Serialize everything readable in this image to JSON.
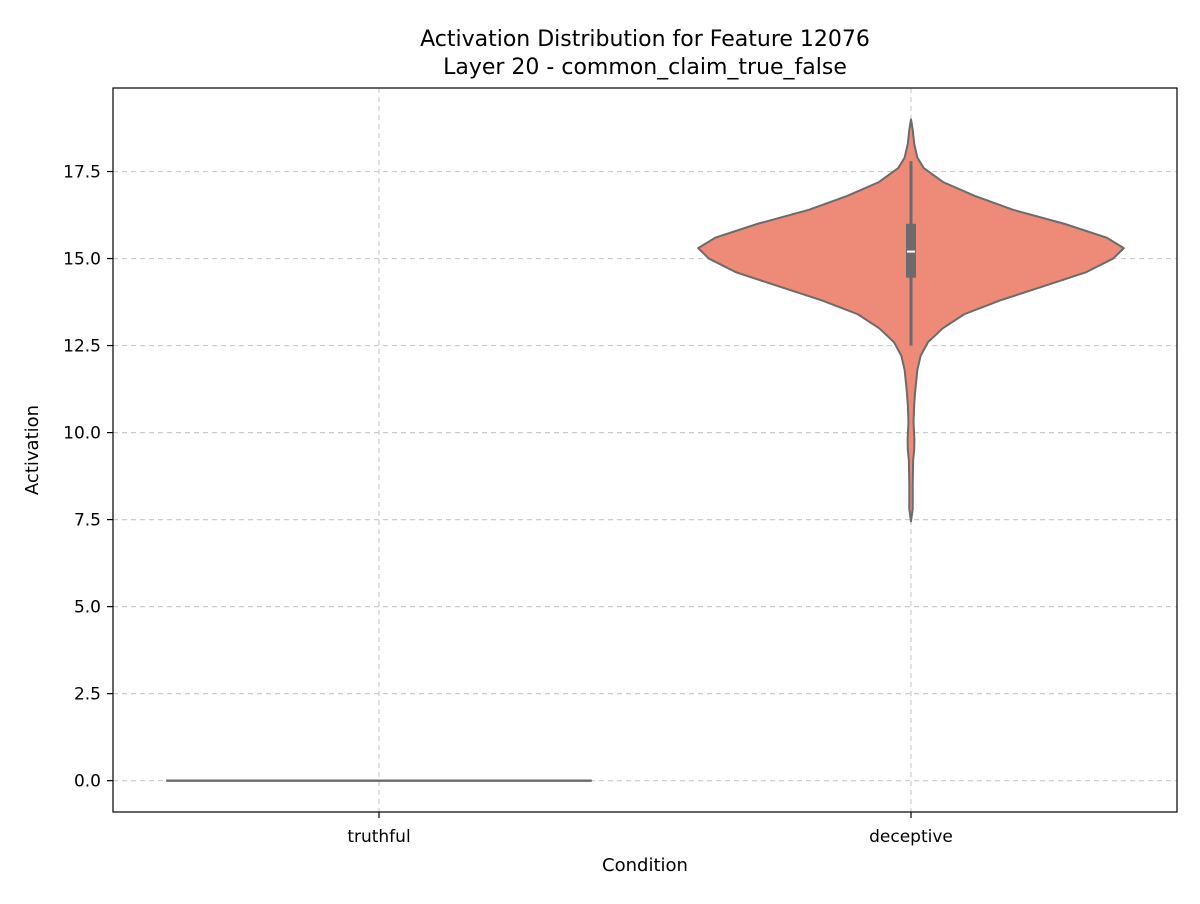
{
  "chart_data": {
    "type": "violin",
    "title": "Activation Distribution for Feature 12076",
    "subtitle": "Layer 20 - common_claim_true_false",
    "xlabel": "Condition",
    "ylabel": "Activation",
    "categories": [
      "truthful",
      "deceptive"
    ],
    "ylim": [
      -0.9,
      19.9
    ],
    "yticks": [
      0.0,
      2.5,
      5.0,
      7.5,
      10.0,
      12.5,
      15.0,
      17.5
    ],
    "ytick_labels": [
      "0.0",
      "2.5",
      "5.0",
      "7.5",
      "10.0",
      "12.5",
      "15.0",
      "17.5"
    ],
    "grid": true,
    "grid_style": "dashed",
    "series": [
      {
        "category": "truthful",
        "color": "#ee8a78",
        "edge_color": "#6b6b6b",
        "all_values": 0.0,
        "profile": [
          [
            0.0,
            1.0
          ]
        ]
      },
      {
        "category": "deceptive",
        "color": "#ee8a78",
        "edge_color": "#6b6b6b",
        "min": 7.45,
        "max": 19.0,
        "whisker_low": 12.5,
        "whisker_high": 17.8,
        "q1": 14.45,
        "q3": 16.0,
        "median": 15.2,
        "profile": [
          [
            7.45,
            0.0
          ],
          [
            7.8,
            0.008
          ],
          [
            8.5,
            0.008
          ],
          [
            9.2,
            0.01
          ],
          [
            9.5,
            0.015
          ],
          [
            9.8,
            0.016
          ],
          [
            10.3,
            0.012
          ],
          [
            10.8,
            0.015
          ],
          [
            11.2,
            0.02
          ],
          [
            11.8,
            0.03
          ],
          [
            12.2,
            0.045
          ],
          [
            12.6,
            0.08
          ],
          [
            13.0,
            0.15
          ],
          [
            13.4,
            0.25
          ],
          [
            13.8,
            0.42
          ],
          [
            14.2,
            0.62
          ],
          [
            14.6,
            0.82
          ],
          [
            15.0,
            0.95
          ],
          [
            15.3,
            1.0
          ],
          [
            15.6,
            0.92
          ],
          [
            16.0,
            0.72
          ],
          [
            16.4,
            0.48
          ],
          [
            16.8,
            0.3
          ],
          [
            17.2,
            0.15
          ],
          [
            17.6,
            0.06
          ],
          [
            17.9,
            0.03
          ],
          [
            18.3,
            0.015
          ],
          [
            18.7,
            0.008
          ],
          [
            19.0,
            0.0
          ]
        ]
      }
    ]
  }
}
